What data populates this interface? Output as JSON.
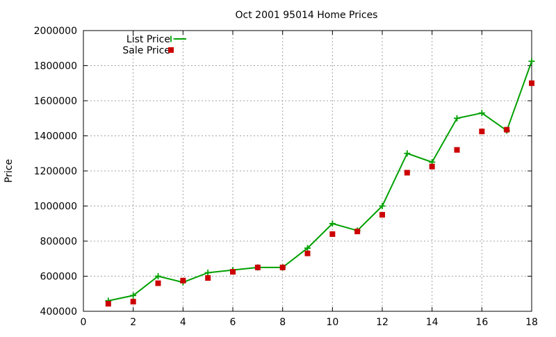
{
  "chart_data": {
    "type": "line",
    "title": "Oct 2001 95014 Home Prices",
    "xlabel": "",
    "ylabel": "Price",
    "xlim": [
      0,
      18
    ],
    "ylim": [
      400000,
      2000000
    ],
    "grid": true,
    "legend_position": "top-left",
    "x_ticks": [
      "0",
      "2",
      "4",
      "6",
      "8",
      "10",
      "12",
      "14",
      "16",
      "18"
    ],
    "y_ticks": [
      "400000",
      "600000",
      "800000",
      "1000000",
      "1200000",
      "1400000",
      "1600000",
      "1800000",
      "2000000"
    ],
    "x": [
      1,
      2,
      3,
      4,
      5,
      6,
      7,
      8,
      9,
      10,
      11,
      12,
      13,
      14,
      15,
      16,
      17,
      18
    ],
    "series": [
      {
        "name": "List Price",
        "style": "line+cross",
        "color": "#00a000",
        "values": [
          460000,
          490000,
          600000,
          565000,
          620000,
          635000,
          650000,
          650000,
          760000,
          900000,
          860000,
          1000000,
          1300000,
          1250000,
          1500000,
          1530000,
          1430000,
          1825000
        ]
      },
      {
        "name": "Sale Price",
        "style": "square",
        "color": "#cc0000",
        "values": [
          443000,
          455000,
          560000,
          575000,
          590000,
          625000,
          650000,
          650000,
          730000,
          840000,
          855000,
          950000,
          1190000,
          1225000,
          1320000,
          1425000,
          1435000,
          1700000
        ]
      }
    ]
  }
}
